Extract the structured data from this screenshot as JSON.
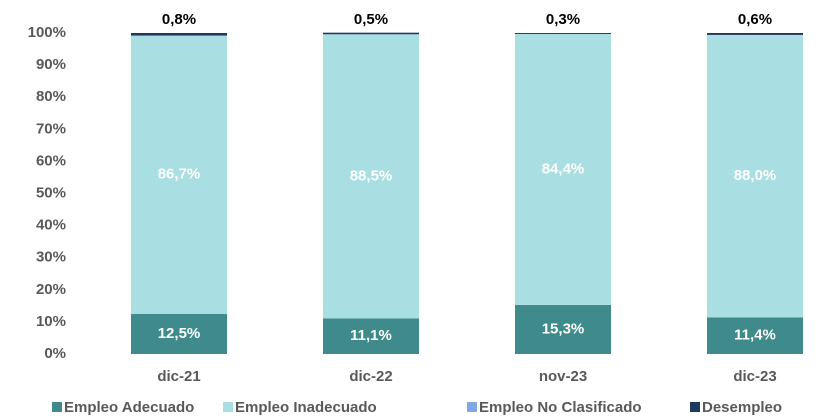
{
  "chart_data": {
    "type": "stacked_bar",
    "categories": [
      "dic-21",
      "dic-22",
      "nov-23",
      "dic-23"
    ],
    "series": [
      {
        "name": "Empleo Adecuado",
        "color": "#3f8b8c",
        "values": [
          12.5,
          11.1,
          15.3,
          11.4
        ],
        "value_labels": [
          "12,5%",
          "11,1%",
          "15,3%",
          "11,4%"
        ]
      },
      {
        "name": "Empleo Inadecuado",
        "color": "#a9dfe2",
        "values": [
          86.7,
          88.5,
          84.4,
          88.0
        ],
        "value_labels": [
          "86,7%",
          "88,5%",
          "84,4%",
          "88,0%"
        ]
      },
      {
        "name": "Empleo No Clasificado",
        "color": "#7fa9e3",
        "values": [
          0,
          0,
          0,
          0
        ]
      },
      {
        "name": "Desempleo",
        "color": "#1f3a60",
        "values": [
          0.8,
          0.5,
          0.3,
          0.6
        ],
        "value_labels": [
          "0,8%",
          "0,5%",
          "0,3%",
          "0,6%"
        ]
      }
    ],
    "ylim": [
      0,
      100
    ],
    "yticks": [
      {
        "value": 0,
        "label": "0%"
      },
      {
        "value": 10,
        "label": "10%"
      },
      {
        "value": 20,
        "label": "20%"
      },
      {
        "value": 30,
        "label": "30%"
      },
      {
        "value": 40,
        "label": "40%"
      },
      {
        "value": 50,
        "label": "50%"
      },
      {
        "value": 60,
        "label": "60%"
      },
      {
        "value": 70,
        "label": "70%"
      },
      {
        "value": 80,
        "label": "80%"
      },
      {
        "value": 90,
        "label": "90%"
      },
      {
        "value": 100,
        "label": "100%"
      }
    ],
    "legend": "bottom"
  }
}
